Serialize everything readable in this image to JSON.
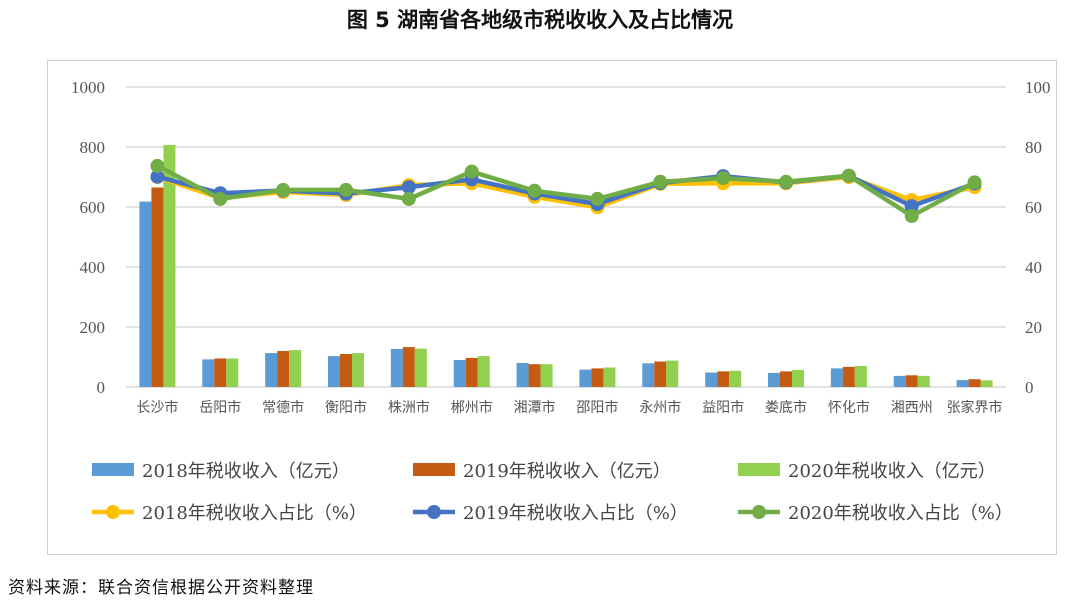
{
  "title": "图 5   湖南省各地级市税收收入及占比情况",
  "source": "资料来源：联合资信根据公开资料整理",
  "chart_data": {
    "type": "bar+line",
    "title": "图 5   湖南省各地级市税收收入及占比情况",
    "categories": [
      "长沙市",
      "岳阳市",
      "常德市",
      "衡阳市",
      "株洲市",
      "郴州市",
      "湘潭市",
      "邵阳市",
      "永州市",
      "益阳市",
      "娄底市",
      "怀化市",
      "湘西州",
      "张家界市"
    ],
    "left_axis": {
      "ylim": [
        0,
        1000
      ],
      "ticks": [
        "0",
        "200",
        "400",
        "600",
        "800",
        "1000"
      ]
    },
    "right_axis": {
      "ylim": [
        0,
        100
      ],
      "ticks": [
        "0",
        "20",
        "40",
        "60",
        "80",
        "100"
      ]
    },
    "grid": true,
    "legend_placement": "bottom",
    "bar_series": [
      {
        "name": "2018年税收收入（亿元）",
        "color": "#5b9bd5",
        "values": [
          618,
          92,
          113,
          103,
          127,
          90,
          80,
          58,
          79,
          48,
          47,
          62,
          37,
          23
        ]
      },
      {
        "name": "2019年税收收入（亿元）",
        "color": "#c55a11",
        "values": [
          665,
          95,
          120,
          110,
          133,
          97,
          76,
          62,
          85,
          52,
          52,
          67,
          39,
          26
        ]
      },
      {
        "name": "2020年税收收入（亿元）",
        "color": "#92d050",
        "values": [
          807,
          95,
          123,
          113,
          128,
          103,
          76,
          65,
          88,
          54,
          57,
          70,
          37,
          22
        ]
      }
    ],
    "line_series": [
      {
        "name": "2018年税收收入占比（%）",
        "color": "#ffc000",
        "values": [
          70,
          63,
          65,
          64,
          67.3,
          67.9,
          63.4,
          59.9,
          67.7,
          67.9,
          67.9,
          70,
          62.3,
          66.6
        ]
      },
      {
        "name": "2019年税收收入占比（%）",
        "color": "#4472c4",
        "values": [
          70.1,
          64.6,
          65.5,
          64.5,
          66.6,
          69.2,
          64.5,
          61,
          68,
          70.3,
          68.2,
          70.4,
          60.3,
          67.8
        ]
      },
      {
        "name": "2020年税收收入占比（%）",
        "color": "#70ad47",
        "values": [
          73.7,
          62.7,
          65.7,
          65.7,
          62.7,
          71.8,
          65.4,
          62.7,
          68.4,
          69.6,
          68.4,
          70.4,
          57,
          68.2
        ]
      }
    ]
  }
}
